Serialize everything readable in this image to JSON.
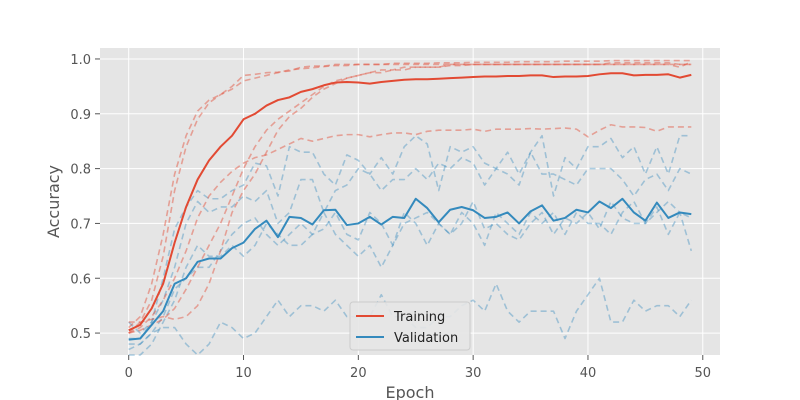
{
  "chart_data": {
    "type": "line",
    "title": "",
    "xlabel": "Epoch",
    "ylabel": "Accuracy",
    "xlim": [
      -2.5,
      51.5
    ],
    "ylim": [
      0.46,
      1.02
    ],
    "x_ticks": [
      0,
      10,
      20,
      30,
      40,
      50
    ],
    "y_ticks": [
      0.5,
      0.6,
      0.7,
      0.8,
      0.9,
      1.0
    ],
    "grid": true,
    "legend_position": "lower center",
    "colors": {
      "training": "#E24A33",
      "validation": "#348ABD",
      "plot_background": "#E5E5E5",
      "grid": "#FFFFFF"
    },
    "epochs": [
      0,
      1,
      2,
      3,
      4,
      5,
      6,
      7,
      8,
      9,
      10,
      11,
      12,
      13,
      14,
      15,
      16,
      17,
      18,
      19,
      20,
      21,
      22,
      23,
      24,
      25,
      26,
      27,
      28,
      29,
      30,
      31,
      32,
      33,
      34,
      35,
      36,
      37,
      38,
      39,
      40,
      41,
      42,
      43,
      44,
      45,
      46,
      47,
      48,
      49
    ],
    "series": [
      {
        "name": "Training",
        "role": "mean-training",
        "values": [
          0.505,
          0.515,
          0.545,
          0.59,
          0.665,
          0.73,
          0.78,
          0.815,
          0.84,
          0.86,
          0.89,
          0.9,
          0.915,
          0.925,
          0.93,
          0.94,
          0.945,
          0.952,
          0.957,
          0.958,
          0.957,
          0.955,
          0.958,
          0.96,
          0.962,
          0.963,
          0.963,
          0.964,
          0.965,
          0.966,
          0.967,
          0.968,
          0.968,
          0.969,
          0.969,
          0.97,
          0.97,
          0.967,
          0.968,
          0.968,
          0.969,
          0.972,
          0.974,
          0.974,
          0.97,
          0.971,
          0.971,
          0.972,
          0.966,
          0.971
        ]
      },
      {
        "name": "Validation",
        "role": "mean-validation",
        "values": [
          0.488,
          0.49,
          0.515,
          0.54,
          0.59,
          0.6,
          0.63,
          0.636,
          0.636,
          0.655,
          0.665,
          0.69,
          0.705,
          0.675,
          0.712,
          0.71,
          0.698,
          0.724,
          0.725,
          0.697,
          0.7,
          0.712,
          0.698,
          0.712,
          0.71,
          0.745,
          0.728,
          0.702,
          0.725,
          0.73,
          0.724,
          0.71,
          0.712,
          0.72,
          0.7,
          0.722,
          0.733,
          0.705,
          0.71,
          0.725,
          0.72,
          0.74,
          0.728,
          0.745,
          0.72,
          0.705,
          0.738,
          0.71,
          0.72,
          0.717
        ]
      },
      {
        "role": "fold-training",
        "values": [
          0.51,
          0.53,
          0.59,
          0.68,
          0.79,
          0.86,
          0.905,
          0.925,
          0.935,
          0.95,
          0.97,
          0.972,
          0.975,
          0.976,
          0.978,
          0.985,
          0.987,
          0.987,
          0.99,
          0.99,
          0.99,
          0.99,
          0.99,
          0.992,
          0.992,
          0.992,
          0.992,
          0.993,
          0.993,
          0.993,
          0.994,
          0.994,
          0.994,
          0.994,
          0.995,
          0.995,
          0.995,
          0.995,
          0.996,
          0.996,
          0.996,
          0.996,
          0.997,
          0.997,
          0.997,
          0.997,
          0.997,
          0.997,
          0.997,
          0.997
        ]
      },
      {
        "role": "fold-training",
        "values": [
          0.5,
          0.52,
          0.56,
          0.64,
          0.76,
          0.84,
          0.89,
          0.92,
          0.935,
          0.945,
          0.96,
          0.965,
          0.97,
          0.975,
          0.98,
          0.982,
          0.984,
          0.986,
          0.988,
          0.988,
          0.99,
          0.99,
          0.99,
          0.99,
          0.99,
          0.99,
          0.99,
          0.99,
          0.99,
          0.99,
          0.99,
          0.99,
          0.99,
          0.99,
          0.99,
          0.99,
          0.99,
          0.99,
          0.99,
          0.99,
          0.99,
          0.99,
          0.99,
          0.99,
          0.99,
          0.99,
          0.99,
          0.99,
          0.985,
          0.995
        ]
      },
      {
        "role": "fold-training",
        "values": [
          0.5,
          0.51,
          0.53,
          0.56,
          0.6,
          0.65,
          0.71,
          0.75,
          0.775,
          0.795,
          0.81,
          0.82,
          0.825,
          0.835,
          0.845,
          0.855,
          0.85,
          0.855,
          0.86,
          0.862,
          0.862,
          0.858,
          0.862,
          0.865,
          0.865,
          0.862,
          0.868,
          0.87,
          0.87,
          0.87,
          0.872,
          0.868,
          0.872,
          0.872,
          0.872,
          0.873,
          0.872,
          0.873,
          0.874,
          0.872,
          0.858,
          0.87,
          0.88,
          0.876,
          0.876,
          0.875,
          0.868,
          0.876,
          0.876,
          0.876
        ]
      },
      {
        "role": "fold-training",
        "values": [
          0.5,
          0.505,
          0.515,
          0.525,
          0.545,
          0.58,
          0.62,
          0.66,
          0.7,
          0.75,
          0.8,
          0.84,
          0.87,
          0.89,
          0.905,
          0.92,
          0.935,
          0.95,
          0.96,
          0.965,
          0.97,
          0.975,
          0.975,
          0.98,
          0.98,
          0.985,
          0.985,
          0.985,
          0.988,
          0.988,
          0.99,
          0.99,
          0.99,
          0.99,
          0.99,
          0.99,
          0.99,
          0.99,
          0.99,
          0.99,
          0.99,
          0.99,
          0.993,
          0.993,
          0.993,
          0.993,
          0.993,
          0.993,
          0.99,
          0.99
        ]
      },
      {
        "role": "fold-training",
        "values": [
          0.52,
          0.52,
          0.525,
          0.53,
          0.525,
          0.53,
          0.55,
          0.59,
          0.65,
          0.72,
          0.76,
          0.79,
          0.83,
          0.87,
          0.895,
          0.91,
          0.93,
          0.945,
          0.955,
          0.965,
          0.97,
          0.975,
          0.98,
          0.98,
          0.985,
          0.985,
          0.985,
          0.985,
          0.99,
          0.99,
          0.99,
          0.99,
          0.99,
          0.99,
          0.99,
          0.99,
          0.99,
          0.99,
          0.99,
          0.99,
          0.99,
          0.99,
          0.99,
          0.99,
          0.99,
          0.99,
          0.99,
          0.99,
          0.99,
          0.99
        ]
      },
      {
        "role": "fold-validation",
        "values": [
          0.52,
          0.5,
          0.52,
          0.6,
          0.69,
          0.73,
          0.76,
          0.745,
          0.745,
          0.76,
          0.77,
          0.81,
          0.805,
          0.75,
          0.84,
          0.83,
          0.83,
          0.79,
          0.77,
          0.825,
          0.815,
          0.79,
          0.82,
          0.79,
          0.84,
          0.86,
          0.845,
          0.76,
          0.84,
          0.83,
          0.84,
          0.81,
          0.8,
          0.83,
          0.79,
          0.83,
          0.86,
          0.75,
          0.82,
          0.8,
          0.84,
          0.84,
          0.855,
          0.82,
          0.84,
          0.79,
          0.84,
          0.79,
          0.86,
          0.86
        ]
      },
      {
        "role": "fold-validation",
        "values": [
          0.49,
          0.49,
          0.52,
          0.56,
          0.62,
          0.7,
          0.74,
          0.72,
          0.73,
          0.73,
          0.75,
          0.74,
          0.76,
          0.7,
          0.72,
          0.78,
          0.78,
          0.72,
          0.76,
          0.77,
          0.8,
          0.79,
          0.76,
          0.78,
          0.78,
          0.8,
          0.78,
          0.81,
          0.8,
          0.82,
          0.81,
          0.77,
          0.8,
          0.79,
          0.77,
          0.83,
          0.79,
          0.79,
          0.78,
          0.77,
          0.8,
          0.8,
          0.8,
          0.78,
          0.75,
          0.78,
          0.79,
          0.76,
          0.8,
          0.79
        ]
      },
      {
        "role": "fold-validation",
        "values": [
          0.47,
          0.48,
          0.5,
          0.53,
          0.58,
          0.6,
          0.62,
          0.62,
          0.65,
          0.68,
          0.7,
          0.71,
          0.68,
          0.66,
          0.68,
          0.7,
          0.68,
          0.69,
          0.72,
          0.68,
          0.67,
          0.72,
          0.7,
          0.66,
          0.7,
          0.71,
          0.72,
          0.7,
          0.68,
          0.7,
          0.74,
          0.69,
          0.7,
          0.68,
          0.67,
          0.7,
          0.72,
          0.68,
          0.71,
          0.7,
          0.72,
          0.69,
          0.74,
          0.71,
          0.7,
          0.7,
          0.73,
          0.68,
          0.72,
          0.71
        ]
      },
      {
        "role": "fold-validation",
        "values": [
          0.46,
          0.46,
          0.48,
          0.52,
          0.56,
          0.62,
          0.66,
          0.64,
          0.64,
          0.66,
          0.64,
          0.66,
          0.7,
          0.68,
          0.66,
          0.66,
          0.68,
          0.72,
          0.68,
          0.66,
          0.64,
          0.66,
          0.62,
          0.66,
          0.72,
          0.7,
          0.66,
          0.7,
          0.68,
          0.72,
          0.7,
          0.66,
          0.72,
          0.7,
          0.68,
          0.72,
          0.7,
          0.72,
          0.68,
          0.72,
          0.7,
          0.7,
          0.68,
          0.72,
          0.74,
          0.7,
          0.72,
          0.74,
          0.72,
          0.65
        ]
      },
      {
        "role": "fold-validation",
        "values": [
          0.48,
          0.48,
          0.5,
          0.51,
          0.51,
          0.48,
          0.46,
          0.48,
          0.52,
          0.51,
          0.49,
          0.5,
          0.53,
          0.56,
          0.53,
          0.55,
          0.55,
          0.54,
          0.56,
          0.53,
          0.53,
          0.53,
          0.57,
          0.53,
          0.53,
          0.51,
          0.51,
          0.53,
          0.53,
          0.55,
          0.56,
          0.54,
          0.59,
          0.54,
          0.52,
          0.54,
          0.54,
          0.54,
          0.49,
          0.54,
          0.57,
          0.6,
          0.52,
          0.52,
          0.56,
          0.54,
          0.55,
          0.55,
          0.53,
          0.56
        ]
      }
    ]
  }
}
